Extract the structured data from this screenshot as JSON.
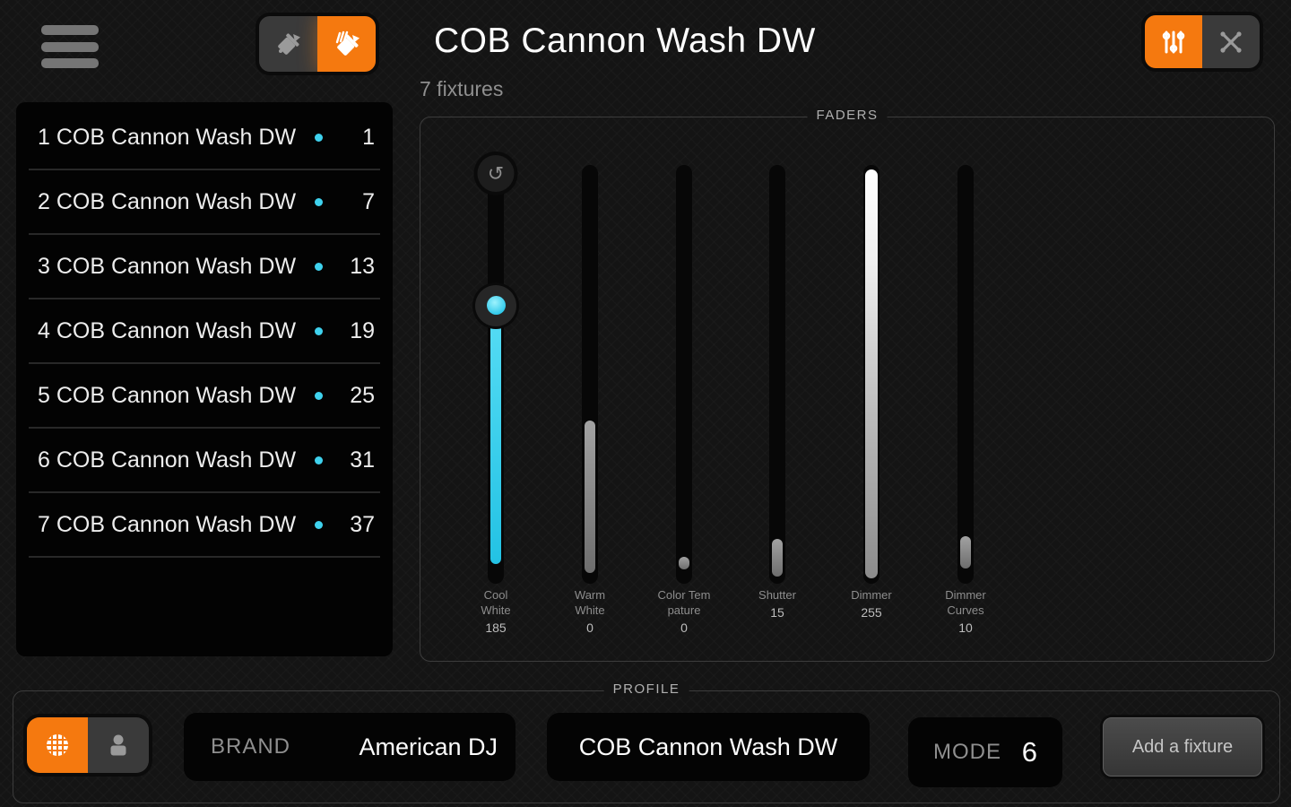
{
  "header": {
    "title": "COB Cannon Wash DW",
    "subtitle": "7 fixtures",
    "paint_toggle": {
      "left_icon": "paint-bucket-icon",
      "right_icon": "paint-bucket-multi-icon",
      "selected": "right"
    },
    "view_toggle": {
      "left_icon": "faders-icon",
      "right_icon": "move-arrows-icon",
      "selected": "left"
    },
    "menu_icon": "hamburger-menu-icon"
  },
  "fixture_list": [
    {
      "label": "1 COB Cannon Wash DW",
      "address": "1"
    },
    {
      "label": "2 COB Cannon Wash DW",
      "address": "7"
    },
    {
      "label": "3 COB Cannon Wash DW",
      "address": "13"
    },
    {
      "label": "4 COB Cannon Wash DW",
      "address": "19"
    },
    {
      "label": "5 COB Cannon Wash DW",
      "address": "25"
    },
    {
      "label": "6 COB Cannon Wash DW",
      "address": "31"
    },
    {
      "label": "7 COB Cannon Wash DW",
      "address": "37"
    }
  ],
  "faders_panel": {
    "legend": "FADERS",
    "faders": [
      {
        "label": "Cool White",
        "label_lines": [
          "Cool",
          "White"
        ],
        "value": "185",
        "style": "cyan",
        "fill_top_pct": 36.0,
        "fill_bottom_pct": 95.3,
        "knob_pct": 33.6,
        "has_reset": true,
        "reset_icon": "reset-undo-icon"
      },
      {
        "label": "Warm White",
        "label_lines": [
          "Warm",
          "White"
        ],
        "value": "0",
        "style": "gray",
        "fill_top_pct": 61.0,
        "fill_bottom_pct": 97.4
      },
      {
        "label": "Color Tempature",
        "label_lines": [
          "Color Tem",
          "pature"
        ],
        "value": "0",
        "style": "gray",
        "fill_top_pct": 93.6,
        "fill_bottom_pct": 96.6
      },
      {
        "label": "Shutter",
        "label_lines": [
          "Shutter"
        ],
        "value": "15",
        "style": "gray",
        "fill_top_pct": 89.3,
        "fill_bottom_pct": 98.3
      },
      {
        "label": "Dimmer",
        "label_lines": [
          "Dimmer"
        ],
        "value": "255",
        "style": "gradient",
        "fill_top_pct": 1.1,
        "fill_bottom_pct": 98.7
      },
      {
        "label": "Dimmer Curves",
        "label_lines": [
          "Dimmer",
          "Curves"
        ],
        "value": "10",
        "style": "gray",
        "fill_top_pct": 88.7,
        "fill_bottom_pct": 96.4
      }
    ]
  },
  "profile_panel": {
    "legend": "PROFILE",
    "source_toggle": {
      "left_icon": "globe-icon",
      "right_icon": "person-icon",
      "selected": "left"
    },
    "brand_label": "BRAND",
    "brand_value": "American DJ",
    "name_value": "COB Cannon Wash DW",
    "mode_label": "MODE",
    "mode_value": "6",
    "add_button_label": "Add a fixture"
  },
  "colors": {
    "accent_orange": "#f5790f",
    "accent_cyan": "#3fd2ee",
    "background": "#141414",
    "panel_black": "#030303"
  }
}
